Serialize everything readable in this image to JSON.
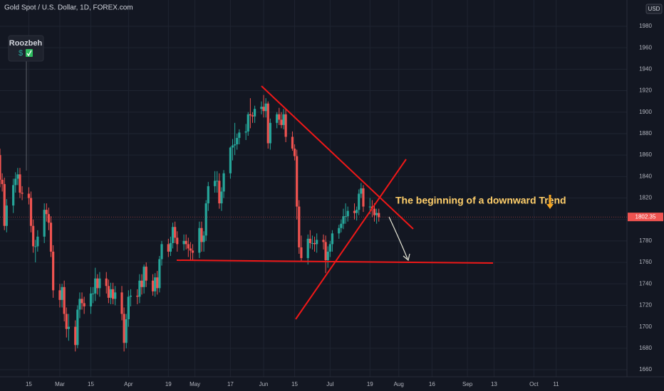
{
  "chart_data": {
    "type": "candlestick",
    "title": "Gold Spot / U.S. Dollar, 1D, FOREX.com",
    "author": "Roozbeh",
    "annotation": "The beginning of a downward Trend",
    "currency": "USD",
    "last_price": 1802.35,
    "up_color": "#26a69a",
    "down_color": "#ef5350",
    "grid": true,
    "x": [
      33,
      34,
      35,
      36,
      39,
      40,
      41,
      42,
      43,
      46,
      47,
      48,
      49,
      50,
      53,
      54,
      55,
      56,
      57,
      60,
      61,
      62,
      63,
      64,
      67,
      68,
      69,
      70,
      71,
      74,
      75,
      76,
      77,
      78,
      81,
      82,
      83,
      84,
      85,
      88,
      89,
      90,
      91,
      92,
      95,
      96,
      97,
      98,
      99,
      102,
      103,
      104,
      105,
      106,
      109,
      110,
      111,
      112,
      113,
      116,
      117,
      118,
      119,
      120,
      123,
      124,
      125,
      126,
      127,
      130,
      131,
      132,
      133,
      134,
      137,
      138,
      139,
      140,
      141,
      144,
      145,
      146,
      147,
      148,
      151,
      152,
      153,
      154,
      155,
      158,
      159,
      160,
      161,
      162,
      165,
      166,
      167,
      168,
      169,
      172,
      173,
      174,
      175,
      176,
      179,
      180,
      181,
      182,
      183,
      186,
      187,
      188,
      189,
      190,
      193,
      194,
      195,
      196,
      197,
      200,
      201,
      202,
      203,
      204
    ],
    "open": [
      1860,
      1837,
      1833,
      1794,
      1813,
      1832,
      1838,
      1842,
      1825,
      1824,
      1820,
      1794,
      1775,
      1775,
      1784,
      1809,
      1805,
      1797,
      1770,
      1734,
      1725,
      1737,
      1712,
      1698,
      1700,
      1683,
      1716,
      1726,
      1722,
      1719,
      1731,
      1731,
      1745,
      1736,
      1745,
      1738,
      1727,
      1735,
      1726,
      1732,
      1712,
      1685,
      1707,
      1728,
      1729,
      1728,
      1743,
      1737,
      1756,
      1743,
      1733,
      1746,
      1736,
      1763,
      1777,
      1770,
      1778,
      1793,
      1783,
      1777,
      1780,
      1777,
      1773,
      1771,
      1769,
      1792,
      1779,
      1785,
      1815,
      1831,
      1836,
      1836,
      1815,
      1826,
      1843,
      1867,
      1869,
      1870,
      1876,
      1881,
      1882,
      1898,
      1897,
      1896,
      1903,
      1905,
      1901,
      1908,
      1871,
      1890,
      1898,
      1893,
      1888,
      1898,
      1877,
      1866,
      1859,
      1812,
      1774,
      1764,
      1782,
      1778,
      1778,
      1777,
      1781,
      1779,
      1762,
      1770,
      1777,
      1787,
      1792,
      1796,
      1803,
      1803,
      1808,
      1806,
      1809,
      1824,
      1829,
      1812,
      1812,
      1810,
      1804,
      1806
    ],
    "high": [
      1866,
      1843,
      1839,
      1819,
      1838,
      1844,
      1848,
      1848,
      1831,
      1830,
      1826,
      1800,
      1781,
      1790,
      1815,
      1815,
      1811,
      1803,
      1776,
      1740,
      1740,
      1743,
      1718,
      1712,
      1706,
      1720,
      1732,
      1732,
      1728,
      1737,
      1737,
      1755,
      1749,
      1751,
      1751,
      1744,
      1741,
      1741,
      1738,
      1738,
      1718,
      1712,
      1734,
      1735,
      1735,
      1749,
      1749,
      1758,
      1760,
      1749,
      1750,
      1752,
      1766,
      1780,
      1782,
      1784,
      1797,
      1798,
      1789,
      1786,
      1786,
      1783,
      1779,
      1777,
      1798,
      1798,
      1789,
      1818,
      1835,
      1845,
      1845,
      1843,
      1830,
      1846,
      1868,
      1875,
      1890,
      1880,
      1884,
      1889,
      1900,
      1913,
      1900,
      1906,
      1910,
      1916,
      1913,
      1910,
      1894,
      1900,
      1904,
      1900,
      1903,
      1903,
      1882,
      1870,
      1865,
      1818,
      1785,
      1786,
      1790,
      1785,
      1784,
      1787,
      1786,
      1785,
      1775,
      1780,
      1790,
      1795,
      1800,
      1810,
      1815,
      1812,
      1815,
      1812,
      1828,
      1834,
      1832,
      1820,
      1818,
      1815,
      1810,
      1810
    ],
    "low": [
      1830,
      1826,
      1790,
      1788,
      1806,
      1825,
      1832,
      1820,
      1818,
      1814,
      1788,
      1769,
      1760,
      1770,
      1778,
      1798,
      1790,
      1765,
      1727,
      1718,
      1718,
      1705,
      1690,
      1687,
      1677,
      1680,
      1708,
      1716,
      1712,
      1712,
      1722,
      1724,
      1730,
      1728,
      1731,
      1722,
      1721,
      1721,
      1720,
      1706,
      1677,
      1680,
      1700,
      1719,
      1721,
      1722,
      1730,
      1731,
      1737,
      1729,
      1728,
      1730,
      1732,
      1757,
      1765,
      1766,
      1773,
      1778,
      1770,
      1771,
      1772,
      1765,
      1762,
      1762,
      1764,
      1770,
      1770,
      1780,
      1808,
      1825,
      1825,
      1810,
      1808,
      1820,
      1838,
      1855,
      1860,
      1865,
      1870,
      1874,
      1878,
      1885,
      1890,
      1890,
      1898,
      1895,
      1895,
      1866,
      1865,
      1885,
      1888,
      1885,
      1884,
      1872,
      1864,
      1855,
      1800,
      1768,
      1761,
      1758,
      1773,
      1772,
      1770,
      1769,
      1772,
      1750,
      1755,
      1765,
      1770,
      1782,
      1788,
      1791,
      1796,
      1798,
      1800,
      1799,
      1804,
      1820,
      1807,
      1805,
      1802,
      1798,
      1796,
      1798
    ],
    "close": [
      1837,
      1833,
      1794,
      1813,
      1832,
      1838,
      1842,
      1825,
      1824,
      1820,
      1794,
      1775,
      1775,
      1784,
      1809,
      1805,
      1797,
      1770,
      1734,
      1725,
      1737,
      1712,
      1698,
      1700,
      1683,
      1716,
      1726,
      1722,
      1719,
      1731,
      1731,
      1745,
      1736,
      1745,
      1738,
      1727,
      1735,
      1726,
      1732,
      1712,
      1685,
      1707,
      1728,
      1729,
      1728,
      1743,
      1737,
      1756,
      1743,
      1733,
      1746,
      1736,
      1763,
      1777,
      1770,
      1778,
      1793,
      1783,
      1777,
      1780,
      1777,
      1773,
      1771,
      1769,
      1792,
      1779,
      1785,
      1815,
      1831,
      1836,
      1836,
      1815,
      1826,
      1843,
      1867,
      1869,
      1870,
      1876,
      1881,
      1882,
      1898,
      1897,
      1896,
      1903,
      1905,
      1901,
      1908,
      1871,
      1890,
      1898,
      1893,
      1888,
      1898,
      1877,
      1866,
      1859,
      1812,
      1774,
      1764,
      1782,
      1778,
      1778,
      1777,
      1781,
      1779,
      1762,
      1770,
      1777,
      1787,
      1792,
      1796,
      1803,
      1803,
      1808,
      1806,
      1809,
      1824,
      1829,
      1812,
      1812,
      1810,
      1804,
      1806,
      1802
    ],
    "xlim": [
      33,
      316
    ],
    "xticks": [
      {
        "value": 46,
        "label": "15"
      },
      {
        "value": 60,
        "label": "Mar"
      },
      {
        "value": 74,
        "label": "15"
      },
      {
        "value": 91,
        "label": "Apr"
      },
      {
        "value": 109,
        "label": "19"
      },
      {
        "value": 121,
        "label": "May"
      },
      {
        "value": 137,
        "label": "17"
      },
      {
        "value": 152,
        "label": "Jun"
      },
      {
        "value": 166,
        "label": "15"
      },
      {
        "value": 182,
        "label": "Jul"
      },
      {
        "value": 200,
        "label": "19"
      },
      {
        "value": 213,
        "label": "Aug"
      },
      {
        "value": 228,
        "label": "16"
      },
      {
        "value": 244,
        "label": "Sep"
      },
      {
        "value": 256,
        "label": "13"
      },
      {
        "value": 274,
        "label": "Oct"
      },
      {
        "value": 284,
        "label": "11"
      }
    ],
    "ylim": [
      1653.4,
      2004.5
    ],
    "yticks": [
      1660,
      1680,
      1700,
      1720,
      1740,
      1760,
      1780,
      1800,
      1820,
      1840,
      1860,
      1880,
      1900,
      1920,
      1940,
      1960,
      1980
    ]
  }
}
